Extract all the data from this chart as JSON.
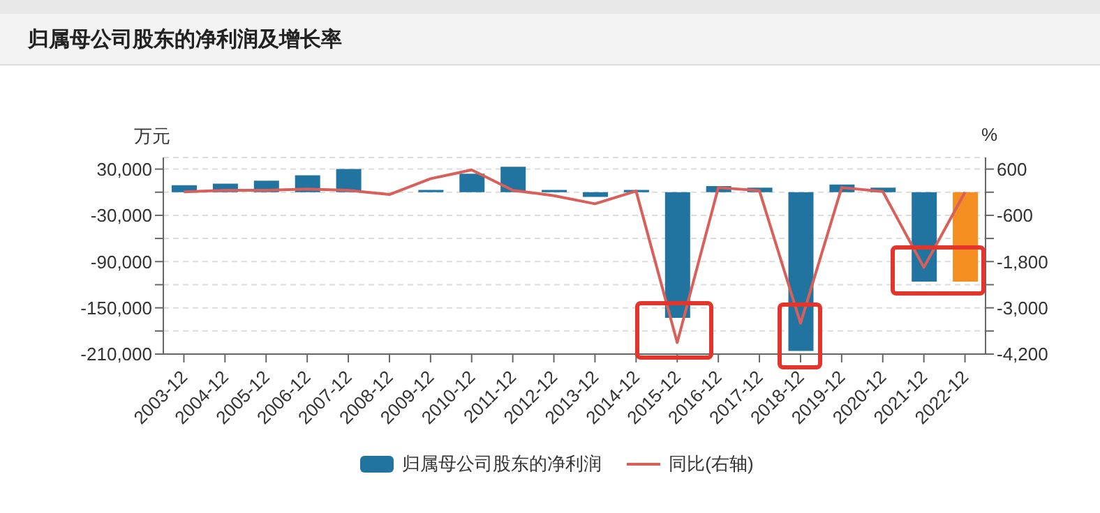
{
  "chart_data": {
    "type": "bar",
    "title": "归属母公司股东的净利润及增长率",
    "ylabel": "万元",
    "y2label": "%",
    "categories": [
      "2003-12",
      "2004-12",
      "2005-12",
      "2006-12",
      "2007-12",
      "2008-12",
      "2009-12",
      "2010-12",
      "2011-12",
      "2012-12",
      "2013-12",
      "2014-12",
      "2015-12",
      "2016-12",
      "2017-12",
      "2018-12",
      "2019-12",
      "2020-12",
      "2021-12",
      "2022-12"
    ],
    "series": [
      {
        "name": "归属母公司股东的净利润",
        "color": "#21749f",
        "colors": [
          "#21749f",
          "#21749f",
          "#21749f",
          "#21749f",
          "#21749f",
          "#21749f",
          "#21749f",
          "#21749f",
          "#21749f",
          "#21749f",
          "#21749f",
          "#21749f",
          "#21749f",
          "#21749f",
          "#21749f",
          "#21749f",
          "#21749f",
          "#21749f",
          "#21749f",
          "#f58e21"
        ],
        "values": [
          9000,
          11000,
          15000,
          22000,
          30000,
          0,
          3000,
          24000,
          33000,
          3000,
          -6000,
          3000,
          -163000,
          8000,
          6000,
          -206000,
          10000,
          6000,
          -116000,
          -116000
        ]
      },
      {
        "name": "同比(右轴)",
        "type": "line",
        "axis": "y2",
        "color": "#d9605a",
        "values": [
          10,
          50,
          50,
          80,
          50,
          -60,
          350,
          580,
          50,
          -90,
          -300,
          30,
          -3900,
          120,
          40,
          -3400,
          120,
          20,
          -1950,
          0
        ]
      }
    ],
    "ylim": [
      -210000,
      45000
    ],
    "yticks": [
      {
        "value": 30000,
        "label": "30,000"
      },
      {
        "value": 0,
        "label": null
      },
      {
        "value": -30000,
        "label": "-30,000"
      },
      {
        "value": -60000,
        "label": null
      },
      {
        "value": -90000,
        "label": "-90,000"
      },
      {
        "value": -120000,
        "label": null
      },
      {
        "value": -150000,
        "label": "-150,000"
      },
      {
        "value": -180000,
        "label": null
      },
      {
        "value": -210000,
        "label": "-210,000"
      }
    ],
    "y2lim": [
      -4200,
      900
    ],
    "y2ticks": [
      600,
      {
        "value": 0,
        "label": null
      },
      -600,
      {
        "value": -1200,
        "label": null
      },
      {
        "value": -1800,
        "label": "-1,800"
      },
      {
        "value": -2400,
        "label": null
      },
      {
        "value": -3000,
        "label": "-3,000"
      },
      {
        "value": -3600,
        "label": null
      },
      {
        "value": -4200,
        "label": "-4,200"
      }
    ],
    "grid": "y",
    "legend": "bottom",
    "marker": "none"
  }
}
